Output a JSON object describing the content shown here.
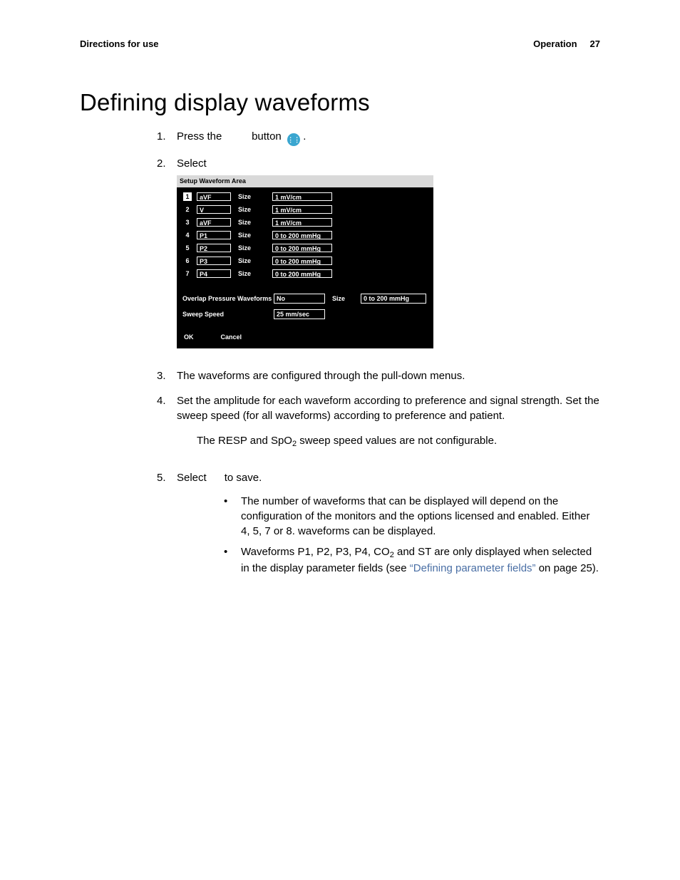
{
  "header": {
    "left": "Directions for use",
    "right_section": "Operation",
    "page_number": "27"
  },
  "title": "Defining display waveforms",
  "steps": {
    "s1_pre": "Press the",
    "s1_mid": "button",
    "s1_post": ".",
    "s2": "Select",
    "s3": "The waveforms are configured through the pull-down menus.",
    "s4": "Set the amplitude for each waveform according to preference and signal strength. Set the sweep speed (for all waveforms) according to preference and patient.",
    "s4_note_pre": "The RESP and SpO",
    "s4_note_sub": "2",
    "s4_note_post": " sweep speed values are not configurable.",
    "s5_pre": "Select",
    "s5_post": "to save."
  },
  "bullets": {
    "b1": "The number of waveforms that can be displayed will depend on the configuration of the monitors and the options licensed and enabled. Either 4, 5, 7 or 8. waveforms can be displayed.",
    "b2_pre": "Waveforms P1, P2, P3, P4, CO",
    "b2_sub": "2",
    "b2_mid": " and ST are only displayed when selected in the display parameter fields (see ",
    "b2_link": "“Defining parameter fields”",
    "b2_post": " on page 25)."
  },
  "ui": {
    "title": "Setup Waveform Area",
    "size_label": "Size",
    "rows": [
      {
        "n": "1",
        "wave": "aVF",
        "size": "1 mV/cm"
      },
      {
        "n": "2",
        "wave": "V",
        "size": "1 mV/cm"
      },
      {
        "n": "3",
        "wave": "aVF",
        "size": "1 mV/cm"
      },
      {
        "n": "4",
        "wave": "P1",
        "size": "0 to 200 mmHg"
      },
      {
        "n": "5",
        "wave": "P2",
        "size": "0 to 200 mmHg"
      },
      {
        "n": "6",
        "wave": "P3",
        "size": "0 to 200 mmHg"
      },
      {
        "n": "7",
        "wave": "P4",
        "size": "0 to 200 mmHg"
      }
    ],
    "overlap_label": "Overlap Pressure Waveforms",
    "overlap_value": "No",
    "overlap_size_label": "Size",
    "overlap_size_value": "0 to 200 mmHg",
    "sweep_label": "Sweep Speed",
    "sweep_value": "25 mm/sec",
    "ok": "OK",
    "cancel": "Cancel"
  },
  "colors": {
    "icon_bg": "#3aa6d0",
    "link": "#4a6fa5"
  }
}
